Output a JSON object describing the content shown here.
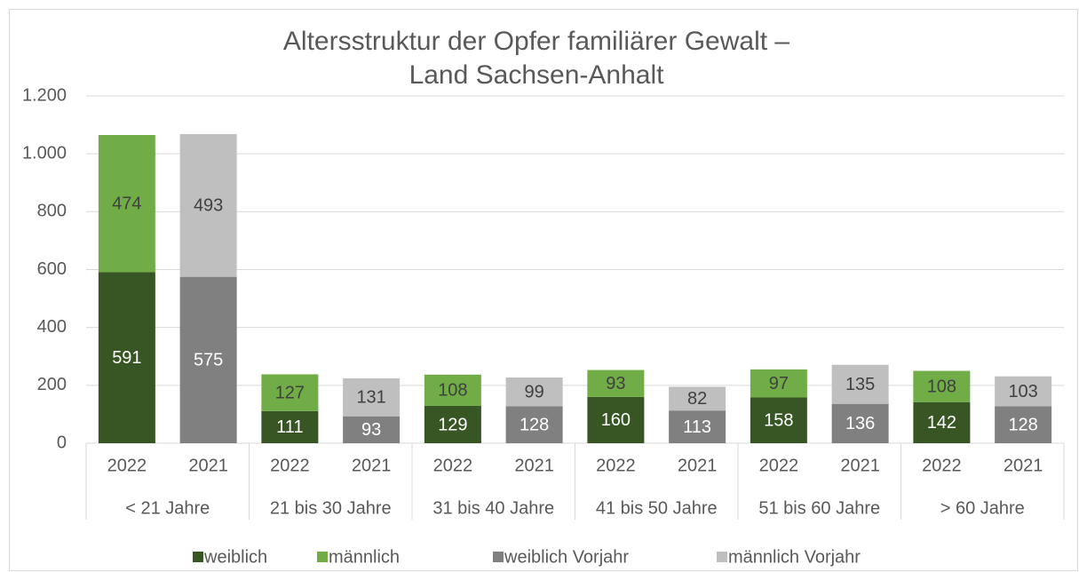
{
  "chart_data": {
    "type": "bar",
    "stacked": true,
    "title": [
      "Altersstruktur der Opfer familiärer Gewalt –",
      "Land Sachsen-Anhalt"
    ],
    "categories": [
      "2022",
      "2021",
      "2022",
      "2021",
      "2022",
      "2021",
      "2022",
      "2021",
      "2022",
      "2021",
      "2022",
      "2021"
    ],
    "groups": [
      "< 21 Jahre",
      "21 bis 30 Jahre",
      "31 bis 40 Jahre",
      "41 bis 50 Jahre",
      "51 bis 60 Jahre",
      "> 60 Jahre"
    ],
    "series": [
      {
        "name": "weiblich",
        "color": "#375623",
        "label_color": "#ffffff",
        "values": [
          591,
          null,
          111,
          null,
          129,
          null,
          160,
          null,
          158,
          null,
          142,
          null
        ]
      },
      {
        "name": "männlich",
        "color": "#70ad47",
        "label_color": "#404040",
        "values": [
          474,
          null,
          127,
          null,
          108,
          null,
          93,
          null,
          97,
          null,
          108,
          null
        ]
      },
      {
        "name": "weiblich Vorjahr",
        "color": "#808080",
        "label_color": "#ffffff",
        "values": [
          null,
          575,
          null,
          93,
          null,
          128,
          null,
          113,
          null,
          136,
          null,
          128
        ]
      },
      {
        "name": "männlich Vorjahr",
        "color": "#bfbfbf",
        "label_color": "#404040",
        "values": [
          null,
          493,
          null,
          131,
          null,
          99,
          null,
          82,
          null,
          135,
          null,
          103
        ]
      }
    ],
    "ylim": [
      0,
      1200
    ],
    "yticks": [
      0,
      200,
      400,
      600,
      800,
      {
        "value": 1000,
        "label": "1.000"
      },
      {
        "value": 1200,
        "label": "1.200"
      }
    ],
    "grid": true,
    "legend": "bottom"
  }
}
